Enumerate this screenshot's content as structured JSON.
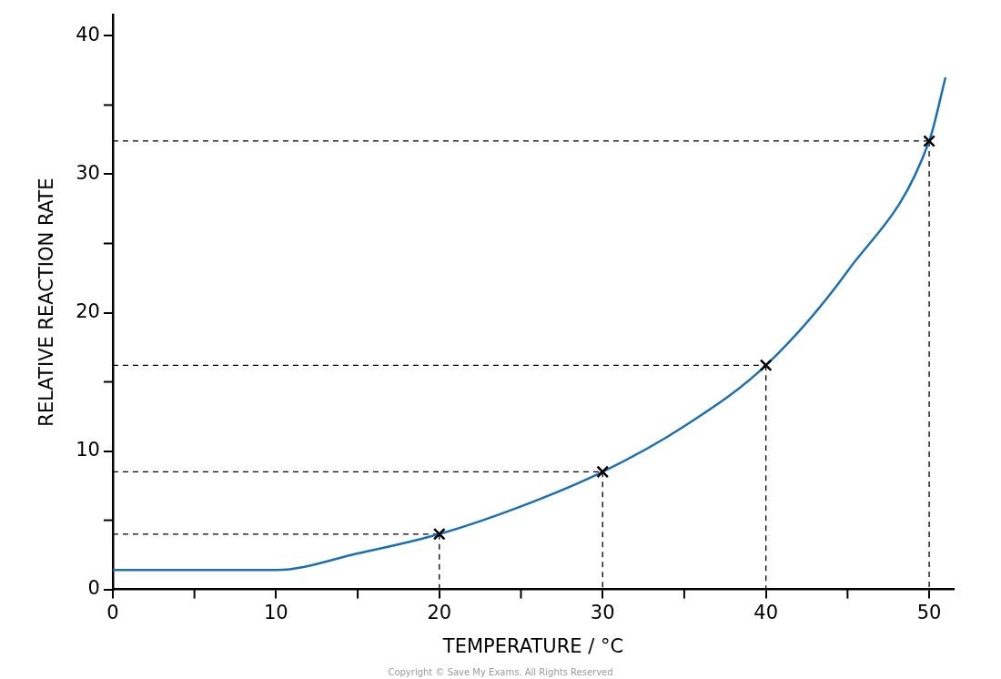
{
  "chart_data": {
    "type": "line",
    "xlabel": "TEMPERATURE / °C",
    "ylabel": "RELATIVE REACTION RATE",
    "annotations": [
      "Copyright © Save My Exams. All Rights Reserved"
    ],
    "xlim": [
      0,
      51.5
    ],
    "xticks": [
      0,
      10,
      20,
      30,
      40,
      50
    ],
    "ylim": [
      0,
      41.5
    ],
    "yticks": [
      0,
      10,
      20,
      30,
      40
    ],
    "grid": false,
    "series": [
      {
        "x": [
          0,
          10,
          15,
          20,
          25,
          30,
          35,
          40,
          45,
          50,
          51
        ],
        "values": [
          1.4,
          1.4,
          2.6,
          4,
          6,
          8.5,
          11.8,
          16.2,
          23,
          32.4,
          37
        ],
        "color": "#1a6fb5",
        "line_style": "solid",
        "marker": "none"
      },
      {
        "x": [
          20,
          30,
          40,
          50
        ],
        "values": [
          4,
          8.5,
          16.2,
          32.4
        ],
        "color": "#000000",
        "line_style": "none",
        "marker": "cross"
      }
    ]
  }
}
